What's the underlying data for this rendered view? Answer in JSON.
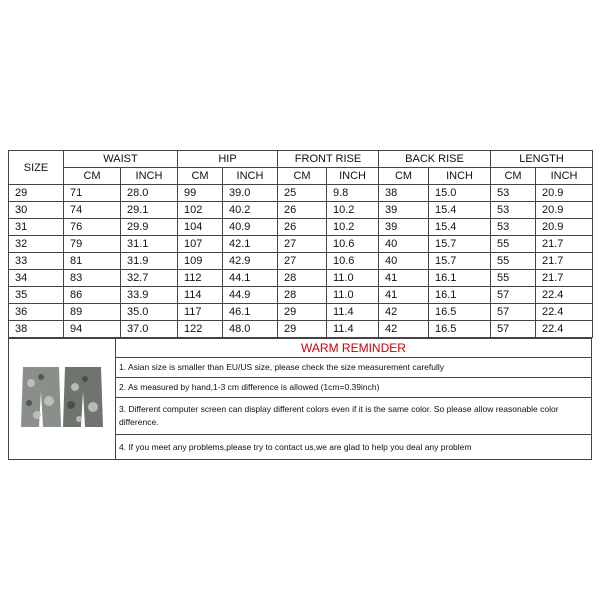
{
  "table": {
    "size_header": "SIZE",
    "groups": [
      "WAIST",
      "HIP",
      "FRONT RISE",
      "BACK  RISE",
      "LENGTH"
    ],
    "units": [
      "CM",
      "INCH"
    ],
    "rows": [
      [
        "29",
        "71",
        "28.0",
        "99",
        "39.0",
        "25",
        "9.8",
        "38",
        "15.0",
        "53",
        "20.9"
      ],
      [
        "30",
        "74",
        "29.1",
        "102",
        "40.2",
        "26",
        "10.2",
        "39",
        "15.4",
        "53",
        "20.9"
      ],
      [
        "31",
        "76",
        "29.9",
        "104",
        "40.9",
        "26",
        "10.2",
        "39",
        "15.4",
        "53",
        "20.9"
      ],
      [
        "32",
        "79",
        "31.1",
        "107",
        "42.1",
        "27",
        "10.6",
        "40",
        "15.7",
        "55",
        "21.7"
      ],
      [
        "33",
        "81",
        "31.9",
        "109",
        "42.9",
        "27",
        "10.6",
        "40",
        "15.7",
        "55",
        "21.7"
      ],
      [
        "34",
        "83",
        "32.7",
        "112",
        "44.1",
        "28",
        "11.0",
        "41",
        "16.1",
        "55",
        "21.7"
      ],
      [
        "35",
        "86",
        "33.9",
        "114",
        "44.9",
        "28",
        "11.0",
        "41",
        "16.1",
        "57",
        "22.4"
      ],
      [
        "36",
        "89",
        "35.0",
        "117",
        "46.1",
        "29",
        "11.4",
        "42",
        "16.5",
        "57",
        "22.4"
      ],
      [
        "38",
        "94",
        "37.0",
        "122",
        "48.0",
        "29",
        "11.4",
        "42",
        "16.5",
        "57",
        "22.4"
      ]
    ]
  },
  "reminder": {
    "title": "WARM REMINDER",
    "items": [
      "1. Asian size is smaller than EU/US size, please check the size measurement carefully",
      "2. As measured by hand,1-3 cm difference is allowed (1cm=0.39inch)",
      "3. Different computer screen can display different colors even if it is the same color. So please allow reasonable color difference.",
      "4. If you meet any problems,please try to contact us,we are glad to help you deal any problem"
    ]
  }
}
